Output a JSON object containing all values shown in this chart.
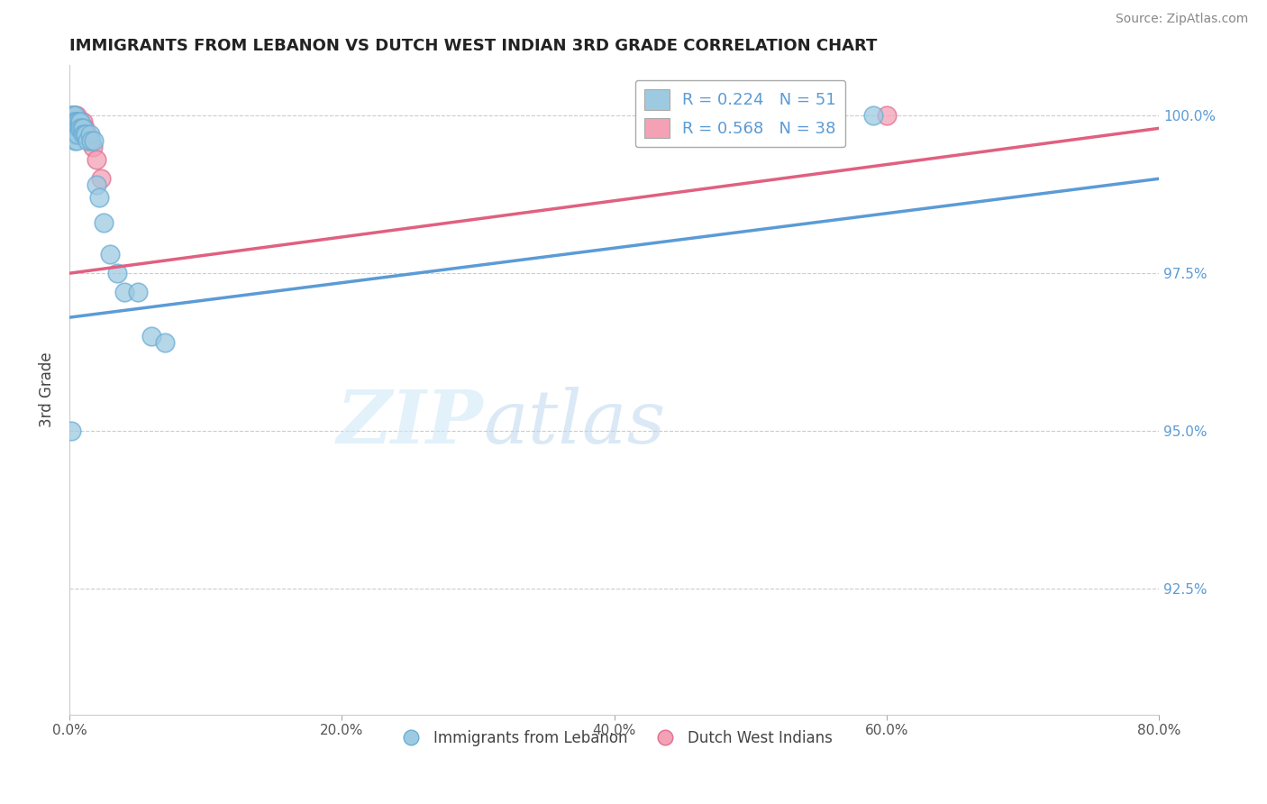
{
  "title": "IMMIGRANTS FROM LEBANON VS DUTCH WEST INDIAN 3RD GRADE CORRELATION CHART",
  "source": "Source: ZipAtlas.com",
  "ylabel_label": "3rd Grade",
  "xlim": [
    0.0,
    0.8
  ],
  "ylim": [
    0.905,
    1.008
  ],
  "x_ticks": [
    0.0,
    0.2,
    0.4,
    0.6,
    0.8
  ],
  "x_tick_labels": [
    "0.0%",
    "20.0%",
    "40.0%",
    "60.0%",
    "80.0%"
  ],
  "y_ticks": [
    0.925,
    0.95,
    0.975,
    1.0
  ],
  "y_tick_labels": [
    "92.5%",
    "95.0%",
    "97.5%",
    "100.0%"
  ],
  "blue_R": 0.224,
  "blue_N": 51,
  "pink_R": 0.568,
  "pink_N": 38,
  "blue_line_color": "#5b9bd5",
  "pink_line_color": "#e06080",
  "blue_scatter_color": "#9ecae1",
  "pink_scatter_color": "#f4a0b5",
  "blue_scatter_edge": "#6baed6",
  "pink_scatter_edge": "#e07090",
  "watermark_zip": "ZIP",
  "watermark_atlas": "atlas",
  "grid_color": "#cccccc",
  "title_color": "#222222",
  "right_tick_color": "#5b9bd5",
  "source_color": "#888888",
  "blue_scatter_x": [
    0.001,
    0.001,
    0.001,
    0.002,
    0.002,
    0.002,
    0.002,
    0.003,
    0.003,
    0.003,
    0.003,
    0.003,
    0.003,
    0.004,
    0.004,
    0.004,
    0.004,
    0.004,
    0.004,
    0.005,
    0.005,
    0.005,
    0.005,
    0.005,
    0.006,
    0.006,
    0.006,
    0.007,
    0.007,
    0.008,
    0.008,
    0.009,
    0.01,
    0.01,
    0.011,
    0.012,
    0.013,
    0.015,
    0.016,
    0.018,
    0.02,
    0.022,
    0.025,
    0.03,
    0.035,
    0.04,
    0.05,
    0.06,
    0.07,
    0.59,
    0.001
  ],
  "blue_scatter_y": [
    1.0,
    0.999,
    0.998,
    1.0,
    0.999,
    0.999,
    0.998,
    1.0,
    0.999,
    0.999,
    0.999,
    0.998,
    0.997,
    1.0,
    0.999,
    0.999,
    0.998,
    0.997,
    0.996,
    0.999,
    0.999,
    0.998,
    0.997,
    0.996,
    0.999,
    0.998,
    0.997,
    0.999,
    0.998,
    0.999,
    0.998,
    0.998,
    0.998,
    0.997,
    0.997,
    0.997,
    0.996,
    0.997,
    0.996,
    0.996,
    0.989,
    0.987,
    0.983,
    0.978,
    0.975,
    0.972,
    0.972,
    0.965,
    0.964,
    1.0,
    0.95
  ],
  "pink_scatter_x": [
    0.001,
    0.001,
    0.002,
    0.002,
    0.002,
    0.003,
    0.003,
    0.003,
    0.003,
    0.004,
    0.004,
    0.004,
    0.005,
    0.005,
    0.005,
    0.005,
    0.005,
    0.006,
    0.006,
    0.006,
    0.007,
    0.007,
    0.007,
    0.007,
    0.008,
    0.008,
    0.009,
    0.01,
    0.01,
    0.011,
    0.012,
    0.013,
    0.014,
    0.015,
    0.017,
    0.02,
    0.023,
    0.6
  ],
  "pink_scatter_y": [
    0.999,
    0.998,
    1.0,
    0.999,
    0.998,
    1.0,
    0.999,
    0.999,
    0.998,
    1.0,
    0.999,
    0.998,
    1.0,
    0.999,
    0.999,
    0.998,
    0.997,
    0.999,
    0.999,
    0.998,
    0.999,
    0.999,
    0.998,
    0.997,
    0.999,
    0.998,
    0.998,
    0.999,
    0.998,
    0.998,
    0.997,
    0.997,
    0.996,
    0.996,
    0.995,
    0.993,
    0.99,
    1.0
  ],
  "blue_line_x0": 0.0,
  "blue_line_y0": 0.968,
  "blue_line_x1": 0.8,
  "blue_line_y1": 0.99,
  "pink_line_x0": 0.0,
  "pink_line_y0": 0.975,
  "pink_line_x1": 0.8,
  "pink_line_y1": 0.998
}
